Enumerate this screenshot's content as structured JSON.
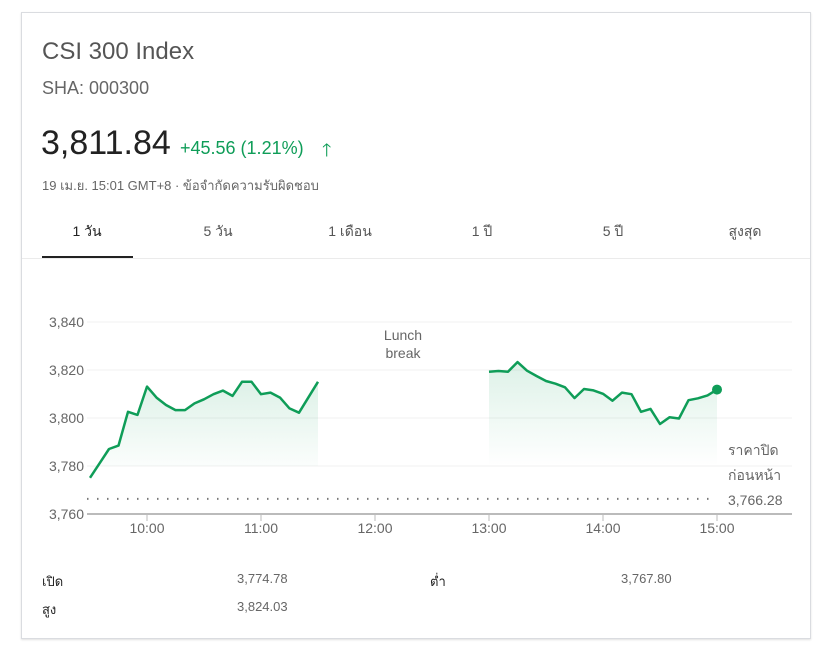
{
  "header": {
    "title": "CSI 300 Index",
    "ticker": "SHA: 000300",
    "price": "3,811.84",
    "change": "+45.56 (1.21%)",
    "change_icon": "arrow-up-icon",
    "timestamp": "19 เม.ย. 15:01 GMT+8 · ข้อจำกัดความรับผิดชอบ",
    "accent_color": "#0f9d58"
  },
  "tabs": [
    {
      "label": "1 วัน",
      "active": true
    },
    {
      "label": "5 วัน"
    },
    {
      "label": "1 เดือน"
    },
    {
      "label": "1 ปี"
    },
    {
      "label": "5 ปี"
    },
    {
      "label": "สูงสุด"
    }
  ],
  "chart_data": {
    "type": "line",
    "ylim": [
      3760,
      3840
    ],
    "yticks": [
      "3,840",
      "3,820",
      "3,800",
      "3,780",
      "3,760"
    ],
    "ytick_values": [
      3840,
      3820,
      3800,
      3780,
      3760
    ],
    "xticks": [
      "10:00",
      "11:00",
      "12:00",
      "13:00",
      "14:00",
      "15:00"
    ],
    "grid": true,
    "line_color": "#0f9d58",
    "annotation": {
      "line1": "Lunch",
      "line2": "break"
    },
    "previous_close": {
      "label1": "ราคาปิด",
      "label2": "ก่อนหน้า",
      "value": 3766.28,
      "value_label": "3,766.28"
    },
    "series": [
      {
        "x": [
          "9:30",
          "9:35",
          "9:40",
          "9:45",
          "9:50",
          "9:55",
          "10:00",
          "10:05",
          "10:10",
          "10:15",
          "10:20",
          "10:25",
          "10:30",
          "10:35",
          "10:40",
          "10:45",
          "10:50",
          "10:55",
          "11:00",
          "11:05",
          "11:10",
          "11:15",
          "11:20",
          "11:30"
        ],
        "values": [
          3775.1,
          3781.1,
          3787.1,
          3788.5,
          3802.6,
          3801.3,
          3813.1,
          3808.5,
          3805.4,
          3803.3,
          3803.3,
          3806.1,
          3807.8,
          3809.9,
          3811.4,
          3809.2,
          3815.1,
          3815.1,
          3809.9,
          3810.6,
          3808.5,
          3804.0,
          3802.2,
          3815.1
        ]
      },
      {
        "x": [
          "13:00",
          "13:05",
          "13:10",
          "13:15",
          "13:20",
          "13:25",
          "13:30",
          "13:35",
          "13:40",
          "13:45",
          "13:50",
          "13:55",
          "14:00",
          "14:05",
          "14:10",
          "14:15",
          "14:20",
          "14:25",
          "14:30",
          "14:35",
          "14:40",
          "14:45",
          "14:50",
          "14:55",
          "15:00"
        ],
        "values": [
          3819.3,
          3819.6,
          3819.3,
          3823.3,
          3819.7,
          3817.5,
          3815.4,
          3814.3,
          3812.8,
          3808.3,
          3812.1,
          3811.5,
          3810.1,
          3807.2,
          3810.6,
          3809.9,
          3802.6,
          3803.8,
          3797.5,
          3800.3,
          3799.8,
          3807.4,
          3808.2,
          3809.4,
          3811.84
        ]
      }
    ]
  },
  "stats": [
    {
      "label": "เปิด",
      "value": "3,774.78"
    },
    {
      "label": "สูง",
      "value": "3,824.03"
    },
    {
      "label": "ต่ำ",
      "value": "3,767.80"
    }
  ]
}
